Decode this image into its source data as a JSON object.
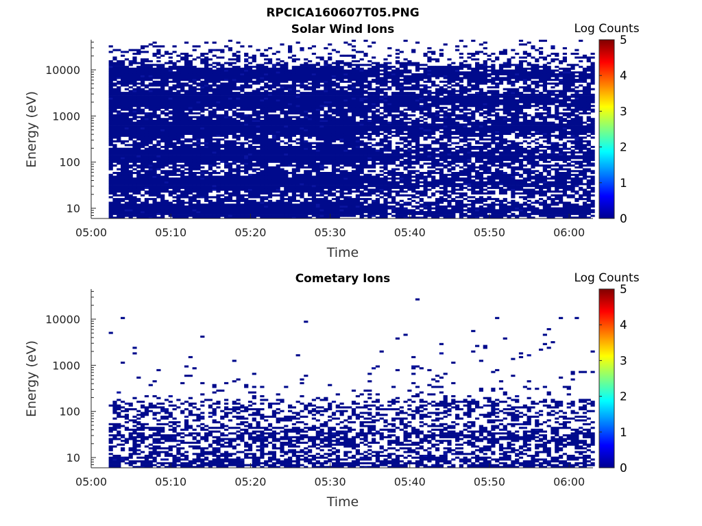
{
  "figure_title": "RPCICA160607T05.PNG",
  "chart_data": [
    {
      "type": "heatmap",
      "title": "Solar Wind Ions",
      "xlabel": "Time",
      "ylabel": "Energy (eV)",
      "x_ticks": [
        "05:00",
        "05:10",
        "05:20",
        "05:30",
        "05:40",
        "05:50",
        "06:00"
      ],
      "x_range_minutes": [
        0,
        63
      ],
      "data_start_minute": 2.2,
      "y_scale": "log",
      "y_ticks": [
        "10",
        "100",
        "1000",
        "10000"
      ],
      "y_range": [
        6,
        45000
      ],
      "colorbar_label": "Log Counts",
      "colorbar_ticks": [
        "0",
        "1",
        "2",
        "3",
        "4",
        "5"
      ],
      "colorbar_range": [
        0,
        5
      ],
      "dominant_log_counts": 0,
      "fill_profile": [
        {
          "energy_ev": 6,
          "occupancy": 0.85
        },
        {
          "energy_ev": 30,
          "occupancy": 0.88
        },
        {
          "energy_ev": 150,
          "occupancy": 0.9
        },
        {
          "energy_ev": 1000,
          "occupancy": 0.96
        },
        {
          "energy_ev": 8000,
          "occupancy": 0.93
        },
        {
          "energy_ev": 15000,
          "occupancy": 0.55
        },
        {
          "energy_ev": 30000,
          "occupancy": 0.12
        },
        {
          "energy_ev": 45000,
          "occupancy": 0.05
        }
      ]
    },
    {
      "type": "heatmap",
      "title": "Cometary Ions",
      "xlabel": "Time",
      "ylabel": "Energy (eV)",
      "x_ticks": [
        "05:00",
        "05:10",
        "05:20",
        "05:30",
        "05:40",
        "05:50",
        "06:00"
      ],
      "x_range_minutes": [
        0,
        63
      ],
      "data_start_minute": 2.2,
      "y_scale": "log",
      "y_ticks": [
        "10",
        "100",
        "1000",
        "10000"
      ],
      "y_range": [
        6,
        45000
      ],
      "colorbar_label": "Log Counts",
      "colorbar_ticks": [
        "0",
        "1",
        "2",
        "3",
        "4",
        "5"
      ],
      "colorbar_range": [
        0,
        5
      ],
      "dominant_log_counts": 0,
      "fill_profile": [
        {
          "energy_ev": 6,
          "occupancy": 0.6
        },
        {
          "energy_ev": 20,
          "occupancy": 0.55
        },
        {
          "energy_ev": 60,
          "occupancy": 0.45
        },
        {
          "energy_ev": 150,
          "occupancy": 0.3
        },
        {
          "energy_ev": 200,
          "occupancy": 0.06
        },
        {
          "energy_ev": 600,
          "occupancy": 0.015
        },
        {
          "energy_ev": 3000,
          "occupancy": 0.004
        },
        {
          "energy_ev": 45000,
          "occupancy": 0.0
        }
      ]
    }
  ],
  "colors": {
    "cell": "#000a8c",
    "cell_alt": "#0a14a0",
    "axis": "#262626",
    "colormap": [
      "#00008f",
      "#0000ff",
      "#00ffff",
      "#ffff00",
      "#ff0000",
      "#800000"
    ]
  }
}
